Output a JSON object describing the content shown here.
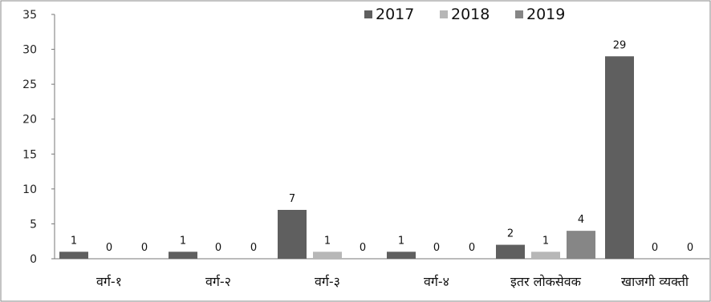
{
  "chart_data": {
    "type": "bar",
    "title": "",
    "xlabel": "",
    "ylabel": "",
    "ylim": [
      0,
      35
    ],
    "y_ticks": [
      0,
      5,
      10,
      15,
      20,
      25,
      30,
      35
    ],
    "grid": false,
    "legend_position": "top",
    "categories": [
      "वर्ग-१",
      "वर्ग-२",
      "वर्ग-३",
      "वर्ग-४",
      "इतर लोकसेवक",
      "खाजगी व्यक्ती"
    ],
    "series": [
      {
        "name": "2017",
        "color": "#5f5f5f",
        "values": [
          1,
          1,
          7,
          1,
          2,
          29
        ]
      },
      {
        "name": "2018",
        "color": "#b7b7b7",
        "values": [
          0,
          0,
          1,
          0,
          1,
          0
        ]
      },
      {
        "name": "2019",
        "color": "#868686",
        "values": [
          0,
          0,
          0,
          0,
          4,
          0
        ]
      }
    ]
  }
}
